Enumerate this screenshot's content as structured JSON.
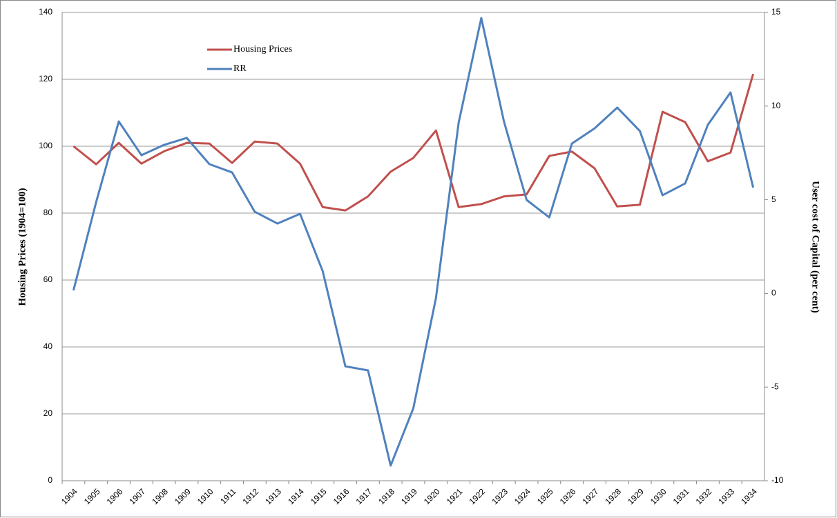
{
  "chart_data": {
    "type": "line",
    "categories": [
      "1904",
      "1905",
      "1906",
      "1907",
      "1908",
      "1909",
      "1910",
      "1911",
      "1912",
      "1913",
      "1914",
      "1915",
      "1916",
      "1917",
      "1918",
      "1919",
      "1920",
      "1921",
      "1922",
      "1923",
      "1924",
      "1925",
      "1926",
      "1927",
      "1928",
      "1929",
      "1930",
      "1931",
      "1932",
      "1933",
      "1934"
    ],
    "series": [
      {
        "name": "Housing Prices",
        "color": "#c0504d",
        "axis": "y",
        "values": [
          100,
          94.6,
          101,
          94.8,
          98.5,
          101,
          100.8,
          95,
          101.4,
          100.8,
          94.8,
          81.8,
          80.8,
          85,
          92.4,
          96.5,
          104.7,
          81.8,
          82.7,
          85,
          85.6,
          97.1,
          98.4,
          93.4,
          82,
          82.5,
          110.3,
          107.2,
          95.5,
          98.1,
          121.6
        ]
      },
      {
        "name": "RR",
        "color": "#4f81bd",
        "axis": "y2",
        "values": [
          0.16,
          4.87,
          9.18,
          7.38,
          7.93,
          8.3,
          6.9,
          6.46,
          4.36,
          3.73,
          4.25,
          1.19,
          -3.89,
          -4.11,
          -9.19,
          -6.13,
          -0.24,
          9.11,
          14.7,
          9.18,
          4.99,
          4.06,
          8.0,
          8.81,
          9.92,
          8.67,
          5.24,
          5.87,
          9.0,
          10.73,
          5.65
        ]
      }
    ],
    "y_label": "Housing Prices (1904=100)",
    "y2_label": "User cost of Capital (per cent)",
    "ylim": [
      0,
      140
    ],
    "yticks": [
      0,
      20,
      40,
      60,
      80,
      100,
      120,
      140
    ],
    "y2lim": [
      -10,
      15
    ],
    "y2ticks": [
      -10,
      -5,
      0,
      5,
      10,
      15
    ],
    "grid": true,
    "legend": "top-left"
  }
}
